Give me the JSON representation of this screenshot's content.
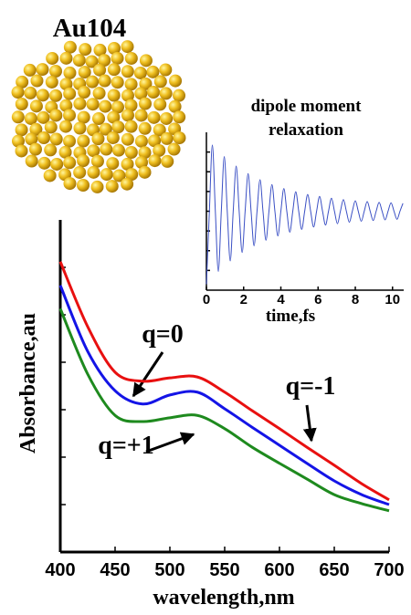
{
  "figure_label": "Au104",
  "chart_data": [
    {
      "type": "line",
      "x_label": "wavelength,nm",
      "y_label": "Absorbance,au",
      "x": [
        400,
        425,
        450,
        475,
        500,
        525,
        550,
        575,
        600,
        625,
        650,
        675,
        700
      ],
      "xlim": [
        400,
        700
      ],
      "xticks": [
        400,
        450,
        500,
        550,
        600,
        650,
        700
      ],
      "ylim": [
        0,
        7
      ],
      "yticks": [
        1,
        2,
        3,
        4,
        5,
        6
      ],
      "series": [
        {
          "name": "q=-1",
          "color": "#e81010",
          "values": [
            6.12,
            4.75,
            3.79,
            3.6,
            3.67,
            3.69,
            3.37,
            2.98,
            2.6,
            2.21,
            1.83,
            1.44,
            1.1
          ]
        },
        {
          "name": "q=0",
          "color": "#1414e6",
          "values": [
            5.62,
            4.23,
            3.4,
            3.12,
            3.31,
            3.37,
            3.02,
            2.63,
            2.25,
            1.87,
            1.5,
            1.21,
            1.0
          ]
        },
        {
          "name": "q=+1",
          "color": "#1e8a1e",
          "values": [
            5.13,
            3.75,
            2.88,
            2.75,
            2.83,
            2.88,
            2.6,
            2.21,
            1.87,
            1.54,
            1.21,
            1.02,
            0.87
          ]
        }
      ]
    },
    {
      "type": "line",
      "title": "dipole moment relaxation",
      "x_label": "time,fs",
      "x": [
        0,
        0.16,
        0.32,
        0.48,
        0.64,
        0.8,
        0.96,
        1.12,
        1.28,
        1.44,
        1.6,
        1.76,
        1.92,
        2.08,
        2.24,
        2.4,
        2.56,
        2.72,
        2.88,
        3.04,
        3.2,
        3.36,
        3.52,
        3.68,
        3.84,
        4,
        4.16,
        4.32,
        4.48,
        4.64,
        4.8,
        4.96,
        5.12,
        5.28,
        5.44,
        5.6,
        5.76,
        5.92,
        6.08,
        6.24,
        6.4,
        6.56,
        6.72,
        6.88,
        7.04,
        7.2,
        7.36,
        7.52,
        7.68,
        7.84,
        8,
        8.16,
        8.32,
        8.48,
        8.64,
        8.8,
        8.96,
        9.12,
        9.28,
        9.44,
        9.6,
        9.76,
        9.92,
        10.08,
        10.24,
        10.4,
        10.56
      ],
      "xlim": [
        0,
        10.6
      ],
      "xticks": [
        0,
        2,
        4,
        6,
        8,
        10
      ],
      "ylim": [
        -4,
        4
      ],
      "yticks": [
        -3,
        -2,
        -1,
        0,
        1,
        2,
        3
      ],
      "series": [
        {
          "color": "#3a4fc4",
          "values": [
            -3.7,
            0,
            3.36,
            0,
            -3.05,
            0,
            2.77,
            0,
            -2.52,
            0,
            2.29,
            0,
            -2.09,
            0,
            1.91,
            0,
            -1.75,
            0,
            1.6,
            0,
            -1.47,
            0,
            1.35,
            0,
            -1.25,
            0,
            1.15,
            0,
            -1.06,
            0,
            0.99,
            0,
            -0.92,
            0,
            0.85,
            0,
            -0.8,
            0,
            0.75,
            0,
            -0.7,
            0,
            0.66,
            0,
            -0.63,
            0,
            0.59,
            0,
            -0.56,
            0,
            0.53,
            0,
            -0.51,
            0,
            0.49,
            0,
            -0.47,
            0,
            0.45,
            0,
            -0.44,
            0,
            0.43,
            0,
            -0.41,
            0,
            0.4
          ]
        }
      ]
    }
  ]
}
